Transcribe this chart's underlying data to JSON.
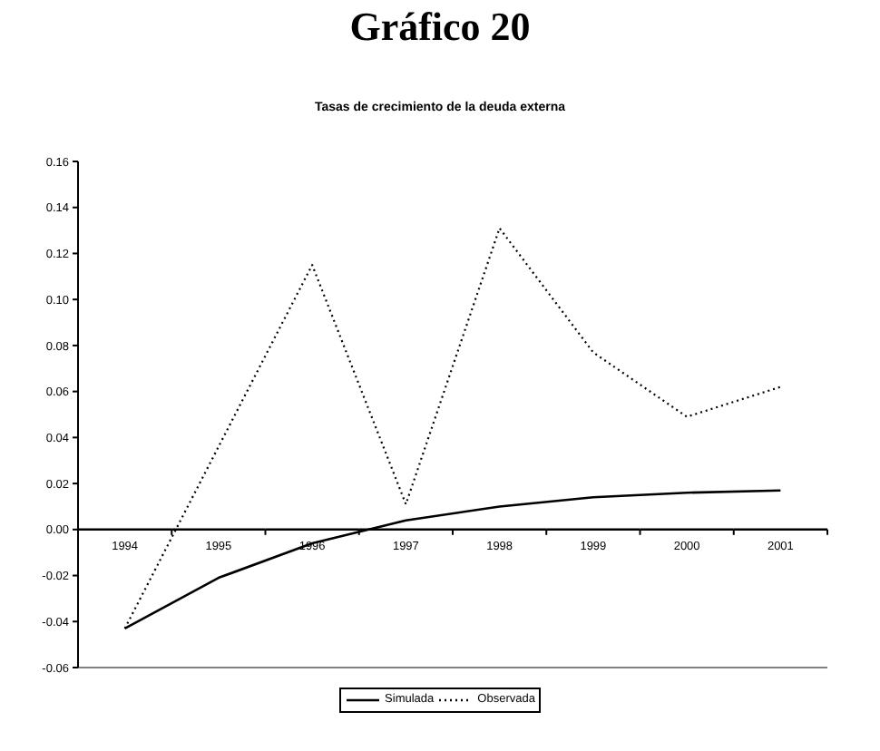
{
  "chart_data": {
    "type": "line",
    "title": "Gráfico 20",
    "subtitle": "Tasas de crecimiento de la deuda externa",
    "categories": [
      "1994",
      "1995",
      "1996",
      "1997",
      "1998",
      "1999",
      "2000",
      "2001"
    ],
    "series": [
      {
        "name": "Simulada",
        "color": "#000000",
        "line_style": "solid",
        "values": [
          -0.043,
          -0.021,
          -0.006,
          0.004,
          0.01,
          0.014,
          0.016,
          0.017
        ]
      },
      {
        "name": "Observada",
        "color": "#000000",
        "line_style": "dotted",
        "values": [
          -0.043,
          0.036,
          0.115,
          0.011,
          0.131,
          0.077,
          0.049,
          0.062
        ]
      }
    ],
    "ylim": [
      -0.06,
      0.16
    ],
    "yticks": [
      -0.06,
      -0.04,
      -0.02,
      {
        "value": 0,
        "label": "0.00"
      },
      0.02,
      0.04,
      0.06,
      0.08,
      {
        "value": 0.1,
        "label": "0.10"
      },
      0.12,
      0.14,
      0.16
    ],
    "grid": false,
    "legend": "bottom",
    "marker": "none"
  }
}
